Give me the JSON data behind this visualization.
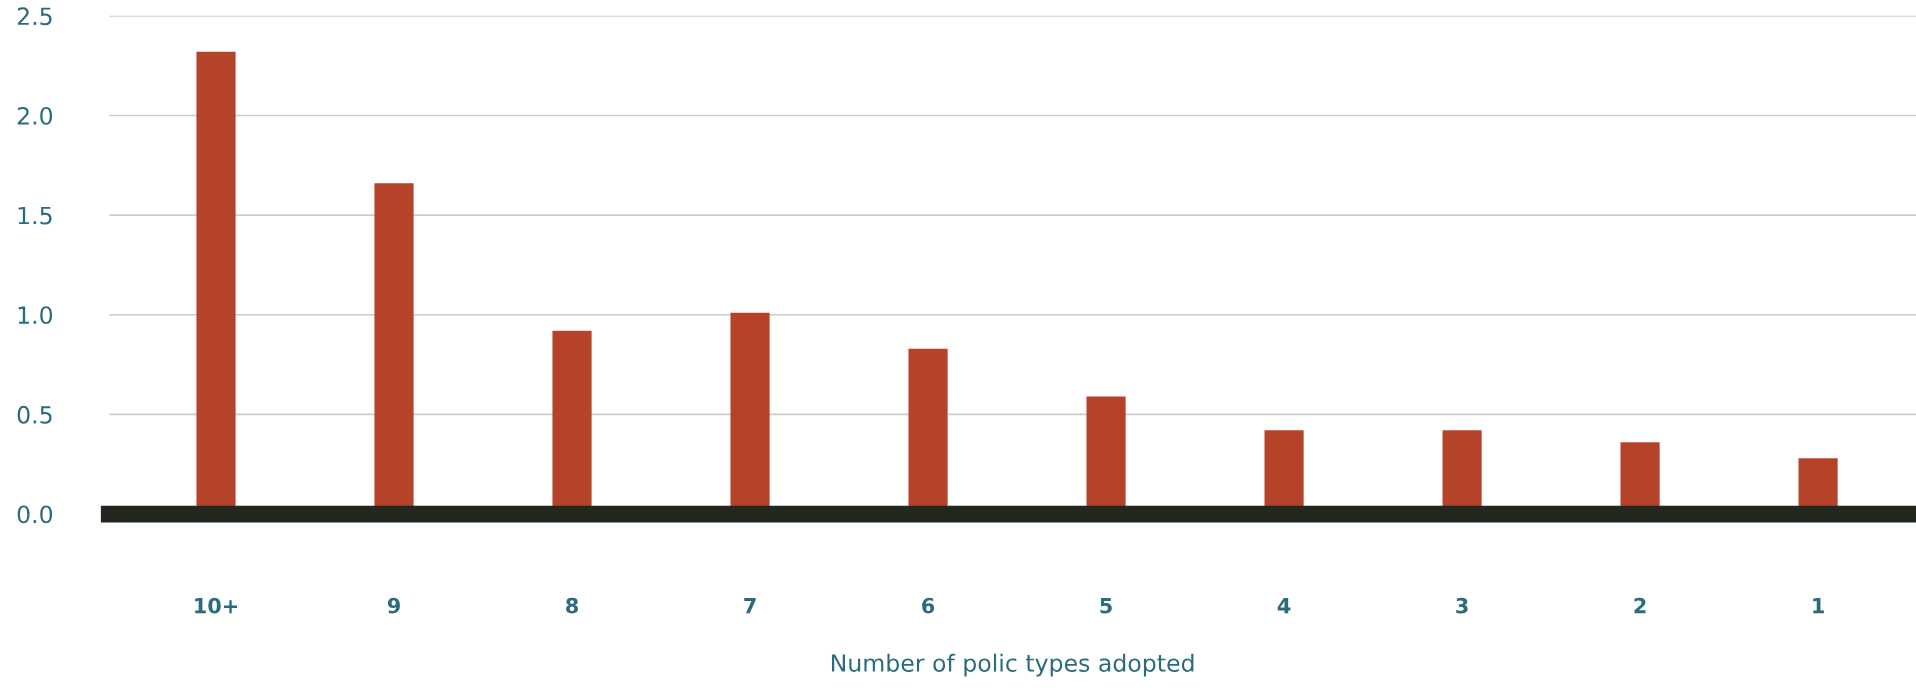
{
  "chart_data": {
    "type": "bar",
    "xlabel": "Number of polic types adopted",
    "categories": [
      "10+",
      "9",
      "8",
      "7",
      "6",
      "5",
      "4",
      "3",
      "2",
      "1"
    ],
    "values": [
      2.32,
      1.66,
      0.92,
      1.01,
      0.83,
      0.59,
      0.42,
      0.42,
      0.36,
      0.28
    ],
    "color": "#b5432a",
    "ylim": [
      0,
      2.5
    ],
    "yticks": [
      {
        "value": 0,
        "label": "0.0"
      },
      {
        "value": 0.5,
        "label": "0.5"
      },
      {
        "value": 1,
        "label": "1.0"
      },
      {
        "value": 1.5,
        "label": "1.5"
      },
      {
        "value": 2,
        "label": "2.0"
      },
      {
        "value": 2.5,
        "label": "2.5"
      }
    ],
    "grid": "y"
  }
}
